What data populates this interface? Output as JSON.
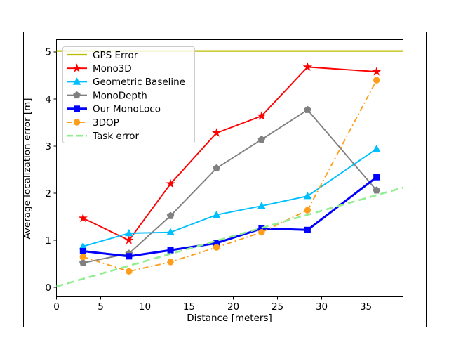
{
  "window": {
    "background": "#ffffff",
    "frame_color": "#000000"
  },
  "chart_data": {
    "type": "line",
    "title": "",
    "xlabel": "Distance [meters]",
    "ylabel": "Average localization error [m]",
    "xlim": [
      0,
      39.2
    ],
    "ylim": [
      -0.2,
      5.26
    ],
    "xticks": [
      0,
      5,
      10,
      15,
      20,
      25,
      30,
      35
    ],
    "yticks": [
      0,
      1,
      2,
      3,
      4,
      5
    ],
    "grid": false,
    "legend_position": "upper-left",
    "x": [
      3,
      8.2,
      12.9,
      18.1,
      23.2,
      28.4,
      36.2
    ],
    "series": [
      {
        "name": "GPS Error",
        "color": "#bdbd00",
        "line": "solid",
        "marker": "none",
        "width": 2.2,
        "kind": "hline",
        "y": 5.02
      },
      {
        "name": "Mono3D",
        "color": "#ff0000",
        "line": "solid",
        "marker": "star",
        "width": 1.9,
        "kind": "points",
        "values": [
          1.47,
          1.0,
          2.2,
          3.28,
          3.64,
          4.68,
          4.58
        ]
      },
      {
        "name": "Geometric Baseline",
        "color": "#00bfff",
        "line": "solid",
        "marker": "triangle",
        "width": 1.9,
        "kind": "points",
        "values": [
          0.87,
          1.15,
          1.17,
          1.54,
          1.73,
          1.94,
          2.94
        ]
      },
      {
        "name": "MonoDepth",
        "color": "#808080",
        "line": "solid",
        "marker": "pentagon",
        "width": 1.9,
        "kind": "points",
        "values": [
          0.52,
          0.72,
          1.52,
          2.53,
          3.14,
          3.77,
          2.06
        ]
      },
      {
        "name": "Our MonoLoco",
        "color": "#0000ff",
        "line": "solid",
        "marker": "square",
        "width": 3.0,
        "kind": "points",
        "values": [
          0.77,
          0.66,
          0.79,
          0.94,
          1.25,
          1.22,
          2.34
        ]
      },
      {
        "name": "3DOP",
        "color": "#ff9e1b",
        "line": "dashdot",
        "marker": "circle",
        "width": 1.9,
        "kind": "points",
        "values": [
          0.65,
          0.34,
          0.54,
          0.85,
          1.17,
          1.64,
          4.4
        ]
      },
      {
        "name": "Task error",
        "color": "#90ee90",
        "line": "dashed",
        "marker": "none",
        "width": 2.6,
        "kind": "segment",
        "x1": 0,
        "y1": 0.02,
        "x2": 39.2,
        "y2": 2.12
      }
    ]
  }
}
